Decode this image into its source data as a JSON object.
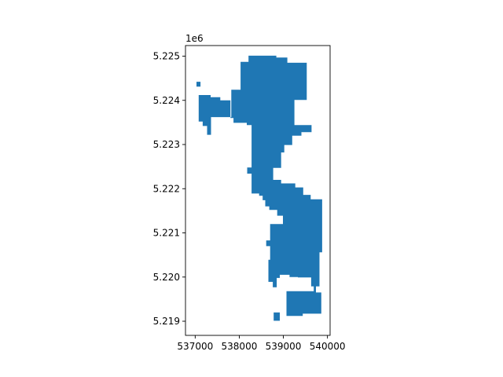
{
  "chart_data": {
    "type": "map",
    "title": "",
    "xlabel": "",
    "ylabel": "",
    "y_offset_label": "1e6",
    "x_ticks": [
      {
        "value": 537000,
        "label": "537000"
      },
      {
        "value": 538000,
        "label": "538000"
      },
      {
        "value": 539000,
        "label": "539000"
      },
      {
        "value": 540000,
        "label": "540000"
      }
    ],
    "y_ticks": [
      {
        "value": 5219000,
        "label": "5.219"
      },
      {
        "value": 5220000,
        "label": "5.220"
      },
      {
        "value": 5221000,
        "label": "5.221"
      },
      {
        "value": 5222000,
        "label": "5.222"
      },
      {
        "value": 5223000,
        "label": "5.223"
      },
      {
        "value": 5224000,
        "label": "5.224"
      },
      {
        "value": 5225000,
        "label": "5.225"
      }
    ],
    "xlim": [
      536780,
      540060
    ],
    "ylim": [
      5218680,
      5225240
    ],
    "fill_color": "#1f77b4",
    "grid": false,
    "legend": "none",
    "series": [
      {
        "type": "polygon",
        "coordinates": [
          [
            538030,
            5224240
          ],
          [
            538030,
            5224870
          ],
          [
            538210,
            5224870
          ],
          [
            538210,
            5225010
          ],
          [
            538840,
            5225010
          ],
          [
            538840,
            5224970
          ],
          [
            539090,
            5224970
          ],
          [
            539090,
            5224850
          ],
          [
            539530,
            5224850
          ],
          [
            539530,
            5224010
          ],
          [
            539250,
            5224010
          ],
          [
            539250,
            5223440
          ],
          [
            539640,
            5223440
          ],
          [
            539640,
            5223280
          ],
          [
            539410,
            5223280
          ],
          [
            539410,
            5223200
          ],
          [
            539200,
            5223200
          ],
          [
            539200,
            5222990
          ],
          [
            539020,
            5222990
          ],
          [
            539020,
            5222820
          ],
          [
            538950,
            5222820
          ],
          [
            538950,
            5222470
          ],
          [
            538770,
            5222470
          ],
          [
            538770,
            5222200
          ],
          [
            538950,
            5222200
          ],
          [
            538950,
            5222120
          ],
          [
            539270,
            5222120
          ],
          [
            539270,
            5222030
          ],
          [
            539450,
            5222030
          ],
          [
            539450,
            5221860
          ],
          [
            539620,
            5221860
          ],
          [
            539620,
            5221760
          ],
          [
            539880,
            5221760
          ],
          [
            539880,
            5220560
          ],
          [
            539820,
            5220560
          ],
          [
            539820,
            5219790
          ],
          [
            539630,
            5219790
          ],
          [
            539630,
            5219990
          ],
          [
            539330,
            5219990
          ],
          [
            539330,
            5220000
          ],
          [
            539140,
            5220000
          ],
          [
            539140,
            5220050
          ],
          [
            538920,
            5220050
          ],
          [
            538920,
            5219980
          ],
          [
            538850,
            5219980
          ],
          [
            538850,
            5219770
          ],
          [
            538760,
            5219770
          ],
          [
            538760,
            5219890
          ],
          [
            538660,
            5219890
          ],
          [
            538660,
            5220390
          ],
          [
            538700,
            5220390
          ],
          [
            538700,
            5220700
          ],
          [
            538610,
            5220700
          ],
          [
            538610,
            5220830
          ],
          [
            538700,
            5220830
          ],
          [
            538700,
            5221200
          ],
          [
            538990,
            5221200
          ],
          [
            538990,
            5221390
          ],
          [
            538860,
            5221390
          ],
          [
            538860,
            5221520
          ],
          [
            538680,
            5221520
          ],
          [
            538680,
            5221600
          ],
          [
            538590,
            5221600
          ],
          [
            538590,
            5221740
          ],
          [
            538530,
            5221740
          ],
          [
            538530,
            5221840
          ],
          [
            538450,
            5221840
          ],
          [
            538450,
            5221890
          ],
          [
            538280,
            5221890
          ],
          [
            538280,
            5222340
          ],
          [
            538180,
            5222340
          ],
          [
            538180,
            5222480
          ],
          [
            538280,
            5222480
          ],
          [
            538280,
            5223440
          ],
          [
            538170,
            5223440
          ],
          [
            538170,
            5223490
          ],
          [
            537870,
            5223490
          ],
          [
            537870,
            5223600
          ],
          [
            537800,
            5223600
          ],
          [
            537800,
            5224000
          ],
          [
            537570,
            5224000
          ],
          [
            537570,
            5224070
          ],
          [
            537350,
            5224070
          ],
          [
            537350,
            5224120
          ],
          [
            537080,
            5224120
          ],
          [
            537080,
            5223520
          ],
          [
            537170,
            5223520
          ],
          [
            537170,
            5223420
          ],
          [
            537270,
            5223420
          ],
          [
            537270,
            5223220
          ],
          [
            537360,
            5223220
          ],
          [
            537360,
            5223620
          ],
          [
            537820,
            5223620
          ],
          [
            537820,
            5224240
          ]
        ]
      },
      {
        "type": "polygon",
        "coordinates": [
          [
            537030,
            5224420
          ],
          [
            537030,
            5224310
          ],
          [
            537120,
            5224310
          ],
          [
            537120,
            5224420
          ]
        ]
      },
      {
        "type": "polygon",
        "coordinates": [
          [
            539070,
            5219680
          ],
          [
            539070,
            5219120
          ],
          [
            539440,
            5219120
          ],
          [
            539440,
            5219170
          ],
          [
            539860,
            5219170
          ],
          [
            539860,
            5219650
          ],
          [
            539740,
            5219650
          ],
          [
            539740,
            5219930
          ],
          [
            539690,
            5219930
          ],
          [
            539690,
            5219680
          ]
        ]
      },
      {
        "type": "polygon",
        "coordinates": [
          [
            538780,
            5219200
          ],
          [
            538780,
            5219010
          ],
          [
            538920,
            5219010
          ],
          [
            538920,
            5219200
          ]
        ]
      }
    ]
  }
}
